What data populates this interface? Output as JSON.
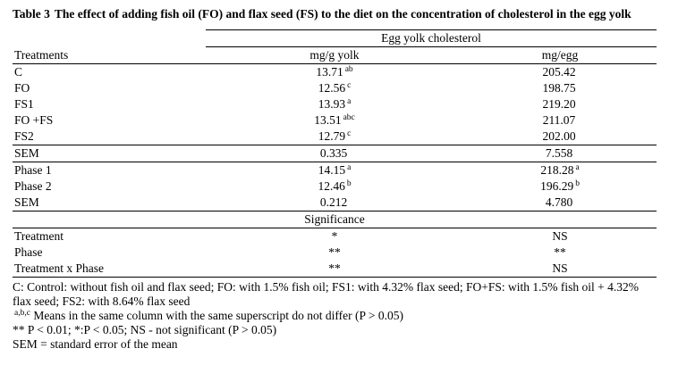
{
  "title": {
    "label": "Table 3",
    "text": "The effect of adding fish oil (FO) and flax seed (FS) to the diet on the concentration of cholesterol in the egg yolk"
  },
  "table": {
    "group_header": "Egg yolk cholesterol",
    "columns": {
      "treatments": "Treatments",
      "col1": "mg/g yolk",
      "col2": "mg/egg"
    },
    "rows": [
      {
        "label": "C",
        "v1": "13.71",
        "s1": "ab",
        "v2": "205.42",
        "s2": ""
      },
      {
        "label": "FO",
        "v1": "12.56",
        "s1": "c",
        "v2": "198.75",
        "s2": ""
      },
      {
        "label": "FS1",
        "v1": "13.93",
        "s1": "a",
        "v2": "219.20",
        "s2": ""
      },
      {
        "label": "FO +FS",
        "v1": "13.51",
        "s1": "abc",
        "v2": "211.07",
        "s2": ""
      },
      {
        "label": "FS2",
        "v1": "12.79",
        "s1": "c",
        "v2": "202.00",
        "s2": ""
      },
      {
        "label": "SEM",
        "v1": "0.335",
        "s1": "",
        "v2": "7.558",
        "s2": ""
      },
      {
        "label": "Phase 1",
        "v1": "14.15",
        "s1": "a",
        "v2": "218.28",
        "s2": "a"
      },
      {
        "label": "Phase 2",
        "v1": "12.46",
        "s1": "b",
        "v2": "196.29",
        "s2": "b"
      },
      {
        "label": "SEM",
        "v1": "0.212",
        "s1": "",
        "v2": "4.780",
        "s2": ""
      }
    ],
    "significance_header": "Significance",
    "significance_rows": [
      {
        "label": "Treatment",
        "v1": "*",
        "v2": "NS"
      },
      {
        "label": "Phase",
        "v1": "**",
        "v2": "**"
      },
      {
        "label": "Treatment x Phase",
        "v1": "**",
        "v2": "NS"
      }
    ]
  },
  "footnotes": {
    "line1": "C: Control: without fish oil and flax seed; FO: with 1.5% fish oil; FS1: with 4.32% flax seed; FO+FS: with 1.5% fish oil + 4.32% flax seed; FS2: with 8.64% flax seed",
    "line2_sup": "a,b,c",
    "line2": " Means in the same column with the same superscript do not differ (P > 0.05)",
    "line3": "** P < 0.01;  *:P < 0.05;  NS - not significant (P > 0.05)",
    "line4": "SEM = standard error of the mean"
  }
}
